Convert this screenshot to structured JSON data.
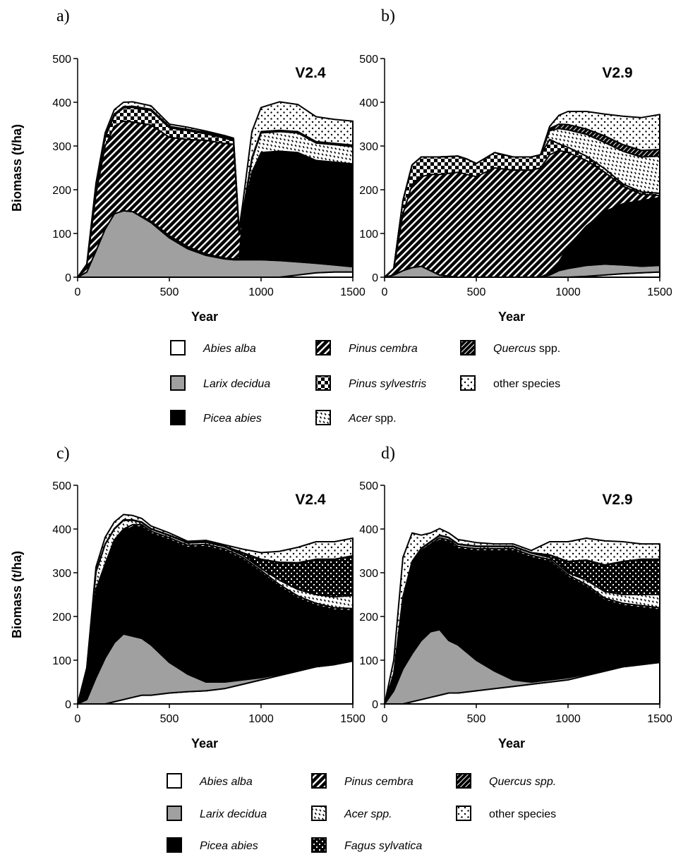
{
  "figure": {
    "panels": [
      "a)",
      "b)",
      "c)",
      "d)"
    ]
  },
  "legend_top": [
    {
      "name": "Abies alba",
      "italic_part": "Abies alba",
      "rest": "",
      "pattern": "white"
    },
    {
      "name": "Larix decidua",
      "italic_part": "Larix decidua",
      "rest": "",
      "pattern": "gray"
    },
    {
      "name": "Picea abies",
      "italic_part": "Picea abies",
      "rest": "",
      "pattern": "black"
    },
    {
      "name": "Pinus cembra",
      "italic_part": "Pinus cembra",
      "rest": "",
      "pattern": "diag"
    },
    {
      "name": "Pinus sylvestris",
      "italic_part": "Pinus sylvestris",
      "rest": "",
      "pattern": "check"
    },
    {
      "name": "Acer spp.",
      "italic_part": "Acer",
      "rest": " spp.",
      "pattern": "acer"
    },
    {
      "name": "Quercus spp.",
      "italic_part": "Quercus",
      "rest": " spp.",
      "pattern": "quercus"
    },
    {
      "name": "other species",
      "italic_part": "",
      "rest": "other species",
      "pattern": "dots"
    }
  ],
  "legend_bottom": [
    {
      "name": "Abies alba",
      "italic_part": "Abies alba",
      "rest": "",
      "pattern": "white"
    },
    {
      "name": "Larix decidua",
      "italic_part": "Larix decidua",
      "rest": "",
      "pattern": "gray"
    },
    {
      "name": "Picea abies",
      "italic_part": "Picea abies",
      "rest": "",
      "pattern": "black"
    },
    {
      "name": "Pinus cembra",
      "italic_part": "Pinus cembra",
      "rest": "",
      "pattern": "diag"
    },
    {
      "name": "Acer spp.",
      "italic_part": "Acer spp.",
      "rest": "",
      "pattern": "acer"
    },
    {
      "name": "Fagus sylvatica",
      "italic_part": "Fagus sylvatica",
      "rest": "",
      "pattern": "fagus"
    },
    {
      "name": "Quercus spp.",
      "italic_part": "Quercus spp.",
      "rest": "",
      "pattern": "quercus"
    },
    {
      "name": "other species",
      "italic_part": "",
      "rest": "other species",
      "pattern": "dots"
    }
  ],
  "chart_data": [
    {
      "panel": "a)",
      "type": "area",
      "stacked": true,
      "label": "V2.4",
      "xlabel": "Year",
      "ylabel": "Biomass  (t/ha)",
      "xlim": [
        0,
        1500
      ],
      "ylim": [
        0,
        500
      ],
      "xticks": [
        0,
        500,
        1000,
        1500
      ],
      "yticks": [
        0,
        100,
        200,
        300,
        400,
        500
      ],
      "x": [
        0,
        50,
        100,
        150,
        200,
        250,
        300,
        400,
        500,
        600,
        700,
        800,
        850,
        880,
        900,
        950,
        1000,
        1100,
        1200,
        1300,
        1400,
        1500
      ],
      "series": [
        {
          "name": "Abies alba",
          "pattern": "white",
          "values": [
            0,
            0,
            0,
            0,
            0,
            0,
            0,
            0,
            0,
            0,
            0,
            0,
            0,
            0,
            0,
            0,
            0,
            0,
            5,
            10,
            12,
            12
          ]
        },
        {
          "name": "Larix decidua",
          "pattern": "gray",
          "values": [
            0,
            12,
            60,
            110,
            145,
            152,
            150,
            125,
            90,
            65,
            50,
            42,
            40,
            40,
            40,
            40,
            40,
            38,
            30,
            22,
            16,
            12
          ]
        },
        {
          "name": "Picea abies",
          "pattern": "black",
          "values": [
            0,
            0,
            0,
            0,
            0,
            0,
            0,
            3,
            5,
            5,
            3,
            2,
            2,
            2,
            100,
            200,
            245,
            250,
            250,
            235,
            235,
            235
          ]
        },
        {
          "name": "Pinus cembra",
          "pattern": "diag",
          "values": [
            0,
            15,
            130,
            190,
            200,
            205,
            205,
            220,
            225,
            245,
            260,
            262,
            262,
            60,
            0,
            0,
            0,
            0,
            0,
            0,
            0,
            0
          ]
        },
        {
          "name": "Pinus sylvestris",
          "pattern": "check",
          "values": [
            0,
            0,
            15,
            20,
            25,
            30,
            33,
            33,
            22,
            20,
            15,
            12,
            8,
            3,
            0,
            0,
            0,
            0,
            0,
            0,
            0,
            0
          ]
        },
        {
          "name": "Acer spp.",
          "pattern": "acer",
          "values": [
            0,
            0,
            0,
            0,
            0,
            0,
            0,
            0,
            0,
            0,
            0,
            0,
            0,
            0,
            5,
            30,
            45,
            45,
            45,
            40,
            40,
            40
          ]
        },
        {
          "name": "Quercus spp.",
          "pattern": "quercus",
          "values": [
            0,
            1,
            2,
            2,
            3,
            3,
            3,
            3,
            3,
            3,
            3,
            3,
            3,
            2,
            3,
            3,
            3,
            3,
            3,
            3,
            3,
            3
          ]
        },
        {
          "name": "other species",
          "pattern": "dots",
          "values": [
            0,
            2,
            8,
            8,
            10,
            10,
            10,
            8,
            5,
            5,
            3,
            3,
            3,
            3,
            20,
            60,
            55,
            65,
            62,
            57,
            55,
            55
          ]
        }
      ]
    },
    {
      "panel": "b)",
      "type": "area",
      "stacked": true,
      "label": "V2.9",
      "xlabel": "Year",
      "ylabel": "",
      "xlim": [
        0,
        1500
      ],
      "ylim": [
        0,
        500
      ],
      "xticks": [
        0,
        500,
        1000,
        1500
      ],
      "yticks": [
        0,
        100,
        200,
        300,
        400,
        500
      ],
      "x": [
        0,
        50,
        100,
        150,
        200,
        250,
        300,
        400,
        450,
        500,
        600,
        700,
        800,
        850,
        900,
        950,
        1000,
        1100,
        1200,
        1300,
        1400,
        1500
      ],
      "series": [
        {
          "name": "Abies alba",
          "pattern": "white",
          "values": [
            0,
            0,
            0,
            0,
            0,
            0,
            0,
            0,
            0,
            0,
            0,
            0,
            0,
            0,
            0,
            0,
            0,
            2,
            5,
            8,
            10,
            12
          ]
        },
        {
          "name": "Larix decidua",
          "pattern": "gray",
          "values": [
            0,
            5,
            15,
            22,
            25,
            15,
            5,
            0,
            0,
            0,
            0,
            0,
            0,
            0,
            5,
            15,
            20,
            25,
            25,
            20,
            15,
            15
          ]
        },
        {
          "name": "Picea abies",
          "pattern": "black",
          "values": [
            0,
            0,
            0,
            0,
            0,
            0,
            0,
            0,
            0,
            0,
            0,
            0,
            0,
            0,
            5,
            20,
            50,
            90,
            120,
            140,
            150,
            155
          ]
        },
        {
          "name": "Pinus cembra",
          "pattern": "diag",
          "values": [
            0,
            15,
            130,
            190,
            205,
            220,
            230,
            240,
            235,
            230,
            250,
            245,
            245,
            250,
            270,
            255,
            215,
            150,
            90,
            40,
            15,
            5
          ]
        },
        {
          "name": "Pinus sylvestris",
          "pattern": "check",
          "values": [
            0,
            0,
            30,
            45,
            45,
            40,
            40,
            37,
            35,
            30,
            35,
            30,
            30,
            30,
            35,
            15,
            12,
            10,
            8,
            5,
            5,
            5
          ]
        },
        {
          "name": "Acer spp.",
          "pattern": "acer",
          "values": [
            0,
            0,
            0,
            0,
            0,
            0,
            0,
            0,
            0,
            0,
            0,
            0,
            0,
            0,
            20,
            35,
            40,
            50,
            60,
            75,
            80,
            85
          ]
        },
        {
          "name": "Quercus spp.",
          "pattern": "quercus",
          "values": [
            0,
            0,
            0,
            0,
            0,
            0,
            0,
            0,
            0,
            0,
            0,
            0,
            0,
            0,
            5,
            10,
            12,
            12,
            15,
            15,
            15,
            15
          ]
        },
        {
          "name": "other species",
          "pattern": "dots",
          "values": [
            0,
            0,
            0,
            0,
            0,
            0,
            0,
            0,
            0,
            0,
            0,
            0,
            0,
            0,
            5,
            20,
            30,
            40,
            50,
            65,
            75,
            80
          ]
        }
      ]
    },
    {
      "panel": "c)",
      "type": "area",
      "stacked": true,
      "label": "V2.4",
      "xlabel": "Year",
      "ylabel": "Biomass  (t/ha)",
      "xlim": [
        0,
        1500
      ],
      "ylim": [
        0,
        500
      ],
      "xticks": [
        0,
        500,
        1000,
        1500
      ],
      "yticks": [
        0,
        100,
        200,
        300,
        400,
        500
      ],
      "x": [
        0,
        50,
        100,
        150,
        200,
        250,
        300,
        350,
        400,
        500,
        600,
        700,
        800,
        900,
        1000,
        1100,
        1200,
        1300,
        1400,
        1500
      ],
      "series": [
        {
          "name": "Abies alba",
          "pattern": "white",
          "values": [
            0,
            0,
            0,
            0,
            5,
            10,
            15,
            20,
            20,
            25,
            28,
            30,
            35,
            45,
            55,
            65,
            75,
            85,
            90,
            98
          ]
        },
        {
          "name": "Larix decidua",
          "pattern": "gray",
          "values": [
            0,
            10,
            60,
            105,
            135,
            150,
            140,
            130,
            115,
            70,
            40,
            20,
            15,
            10,
            5,
            3,
            2,
            0,
            0,
            0
          ]
        },
        {
          "name": "Picea abies",
          "pattern": "black",
          "values": [
            0,
            60,
            200,
            210,
            230,
            235,
            250,
            255,
            255,
            280,
            290,
            310,
            300,
            275,
            240,
            200,
            165,
            140,
            125,
            115
          ]
        },
        {
          "name": "Pinus cembra",
          "pattern": "diag",
          "values": [
            0,
            0,
            2,
            5,
            5,
            5,
            5,
            5,
            5,
            5,
            5,
            5,
            5,
            5,
            5,
            5,
            5,
            5,
            5,
            5
          ]
        },
        {
          "name": "Acer spp.",
          "pattern": "acer",
          "values": [
            0,
            10,
            40,
            45,
            25,
            20,
            10,
            5,
            5,
            5,
            5,
            5,
            5,
            5,
            5,
            10,
            15,
            20,
            25,
            30
          ]
        },
        {
          "name": "Fagus sylvatica",
          "pattern": "fagus",
          "values": [
            0,
            0,
            0,
            0,
            0,
            0,
            0,
            0,
            0,
            0,
            0,
            0,
            0,
            5,
            20,
            40,
            60,
            80,
            85,
            90
          ]
        },
        {
          "name": "Quercus spp.",
          "pattern": "quercus",
          "values": [
            0,
            0,
            1,
            1,
            1,
            1,
            1,
            1,
            1,
            1,
            1,
            1,
            1,
            1,
            1,
            1,
            1,
            1,
            1,
            1
          ]
        },
        {
          "name": "other species",
          "pattern": "dots",
          "values": [
            0,
            3,
            10,
            15,
            15,
            12,
            10,
            8,
            6,
            5,
            3,
            3,
            3,
            8,
            15,
            25,
            35,
            40,
            40,
            40
          ]
        }
      ]
    },
    {
      "panel": "d)",
      "type": "area",
      "stacked": true,
      "label": "V2.9",
      "xlabel": "Year",
      "ylabel": "",
      "xlim": [
        0,
        1500
      ],
      "ylim": [
        0,
        500
      ],
      "xticks": [
        0,
        500,
        1000,
        1500
      ],
      "yticks": [
        0,
        100,
        200,
        300,
        400,
        500
      ],
      "x": [
        0,
        50,
        100,
        150,
        200,
        250,
        300,
        350,
        400,
        500,
        600,
        700,
        800,
        900,
        1000,
        1100,
        1200,
        1300,
        1400,
        1500
      ],
      "series": [
        {
          "name": "Abies alba",
          "pattern": "white",
          "values": [
            0,
            0,
            0,
            5,
            10,
            15,
            20,
            25,
            25,
            30,
            35,
            40,
            45,
            50,
            55,
            65,
            75,
            85,
            90,
            95
          ]
        },
        {
          "name": "Larix decidua",
          "pattern": "gray",
          "values": [
            0,
            30,
            80,
            110,
            135,
            150,
            150,
            120,
            110,
            70,
            40,
            15,
            5,
            5,
            5,
            3,
            2,
            0,
            0,
            0
          ]
        },
        {
          "name": "Picea abies",
          "pattern": "black",
          "values": [
            0,
            40,
            160,
            200,
            200,
            195,
            205,
            225,
            220,
            250,
            275,
            295,
            285,
            270,
            230,
            200,
            160,
            140,
            130,
            120
          ]
        },
        {
          "name": "Pinus cembra",
          "pattern": "diag",
          "values": [
            0,
            0,
            2,
            5,
            5,
            5,
            5,
            5,
            5,
            5,
            5,
            5,
            5,
            5,
            5,
            5,
            5,
            5,
            5,
            5
          ]
        },
        {
          "name": "Acer spp.",
          "pattern": "acer",
          "values": [
            0,
            0,
            2,
            5,
            5,
            5,
            5,
            5,
            5,
            5,
            5,
            5,
            5,
            5,
            5,
            10,
            15,
            20,
            25,
            30
          ]
        },
        {
          "name": "Fagus sylvatica",
          "pattern": "fagus",
          "values": [
            0,
            0,
            0,
            0,
            0,
            0,
            0,
            0,
            0,
            0,
            0,
            0,
            0,
            5,
            25,
            45,
            60,
            75,
            80,
            80
          ]
        },
        {
          "name": "Quercus spp.",
          "pattern": "quercus",
          "values": [
            0,
            0,
            1,
            1,
            1,
            1,
            1,
            1,
            1,
            1,
            1,
            1,
            1,
            1,
            1,
            1,
            1,
            1,
            1,
            1
          ]
        },
        {
          "name": "other species",
          "pattern": "dots",
          "values": [
            0,
            30,
            90,
            65,
            30,
            20,
            15,
            10,
            10,
            8,
            5,
            5,
            5,
            30,
            45,
            50,
            55,
            45,
            35,
            35
          ]
        }
      ]
    }
  ]
}
